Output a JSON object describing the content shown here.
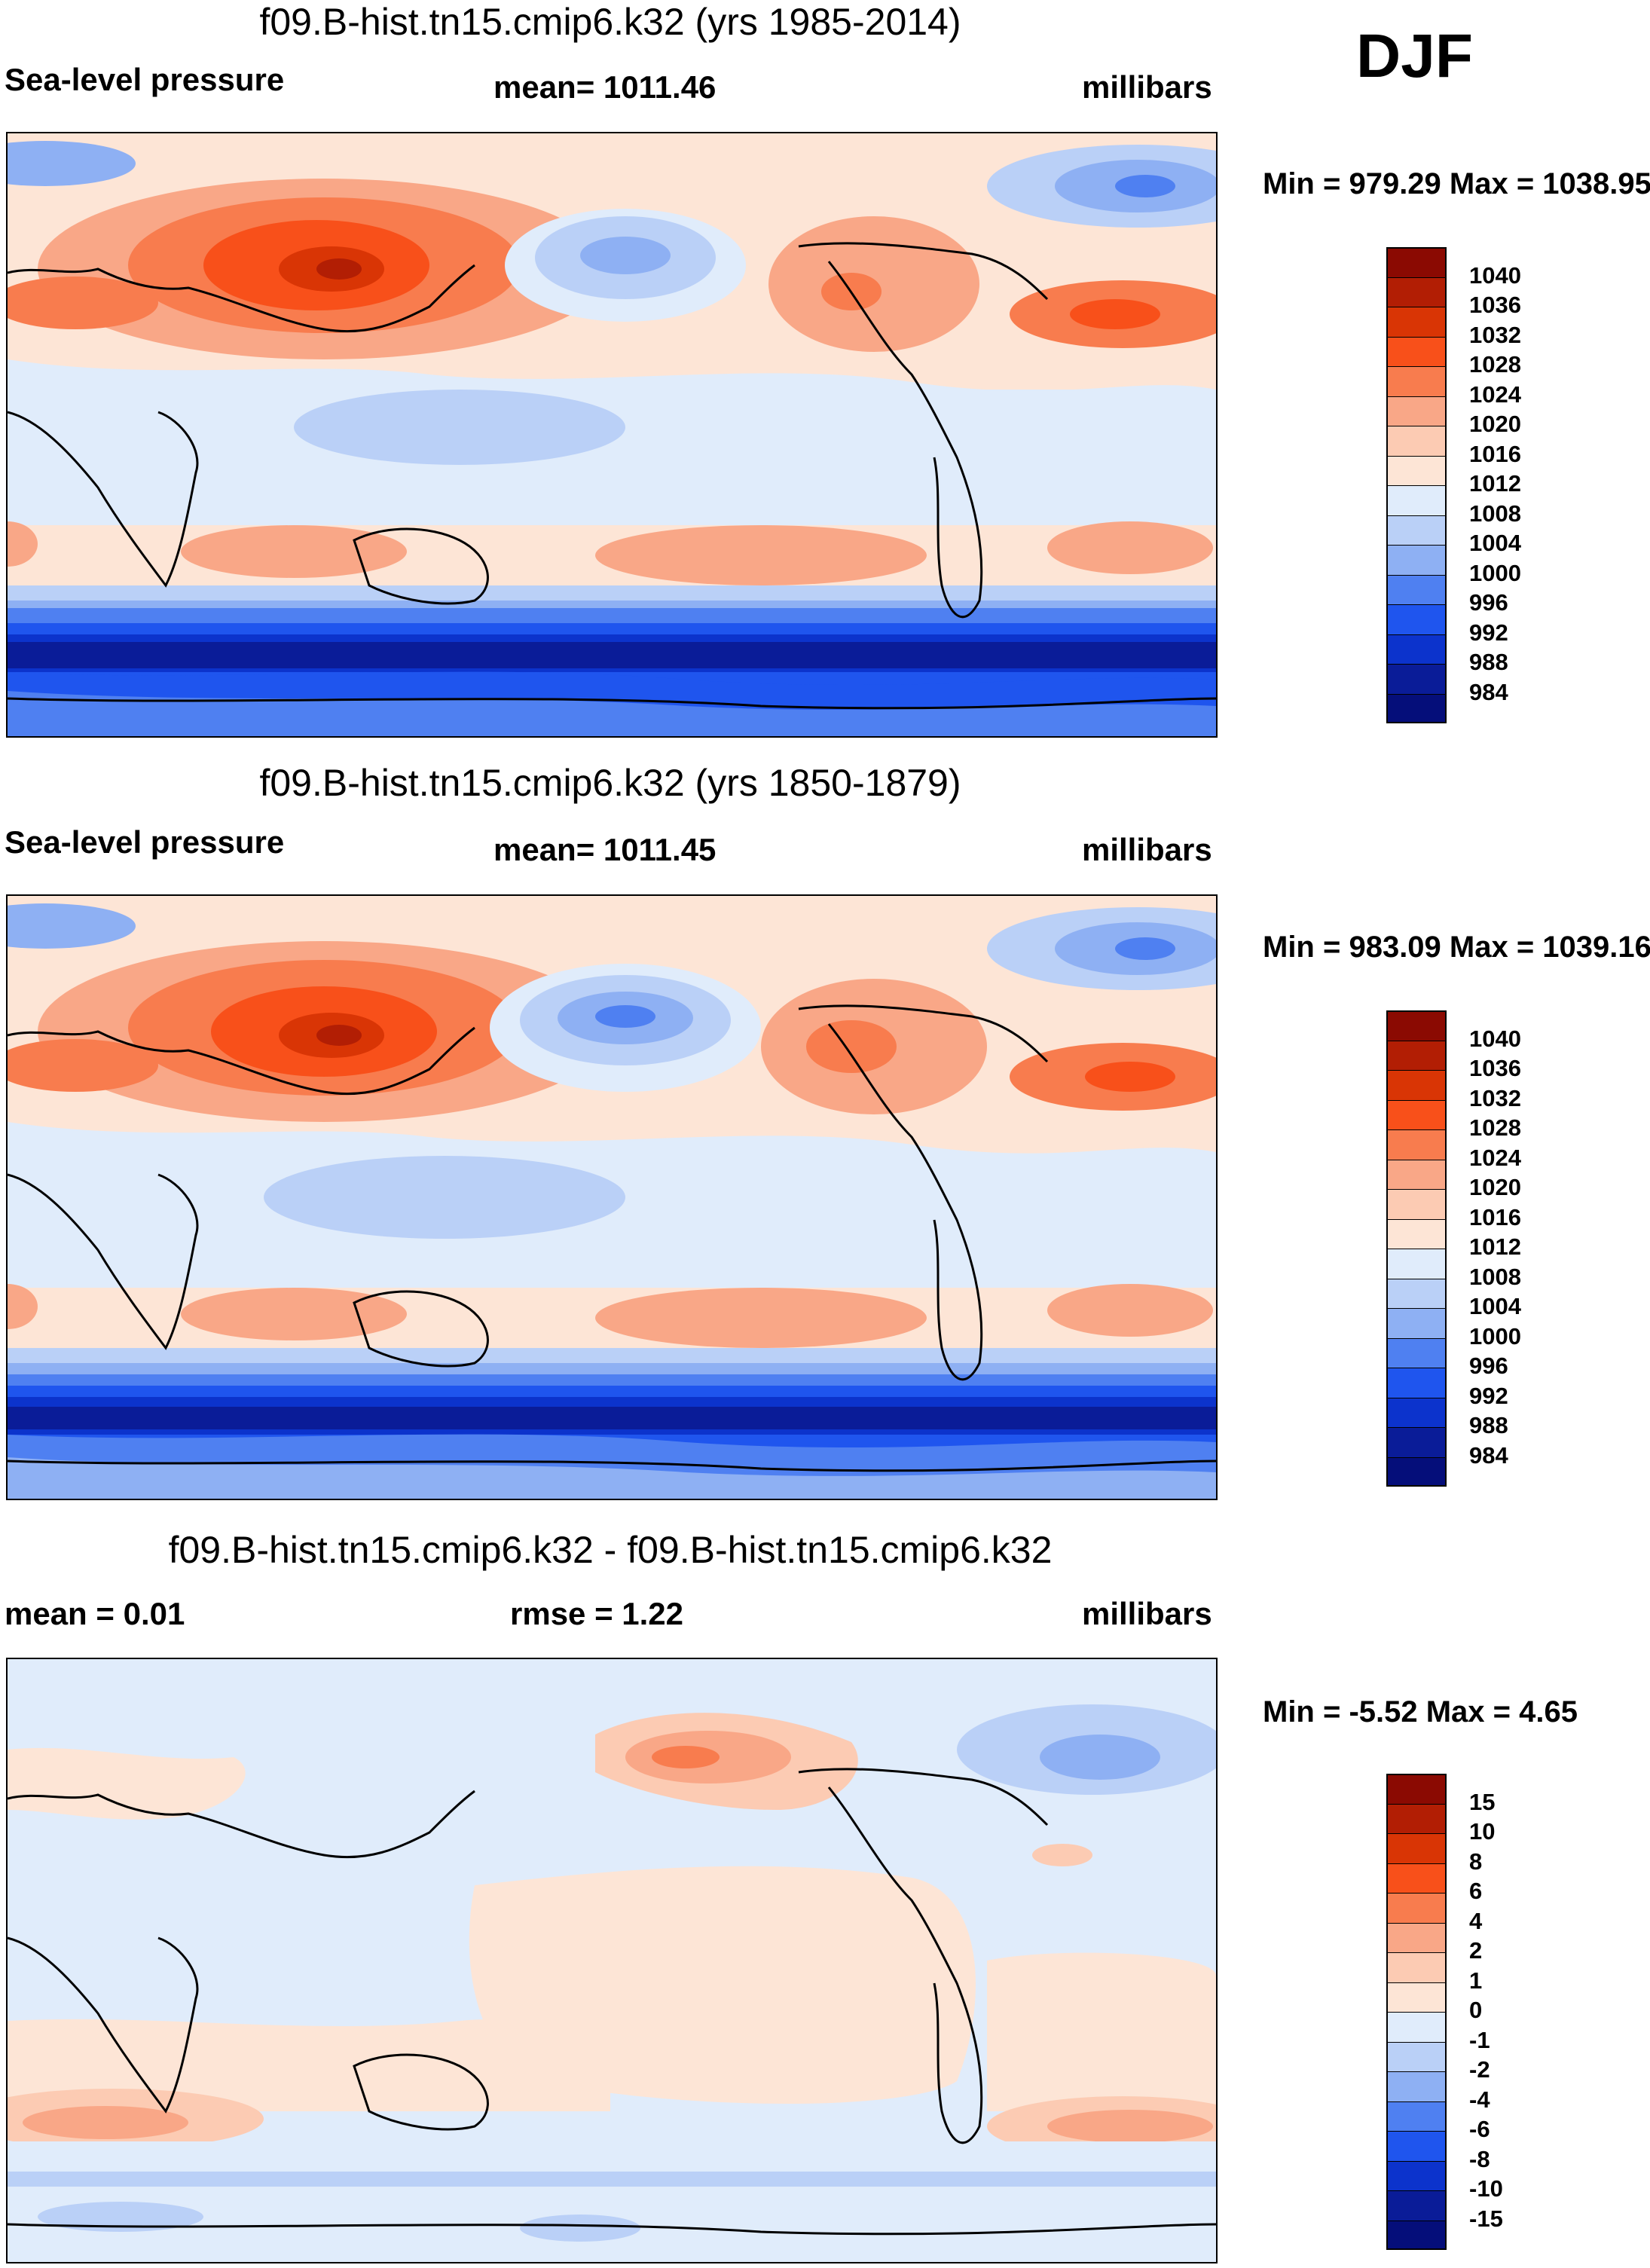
{
  "season": "DJF",
  "colorbar_levels_slp": [
    "1040",
    "1036",
    "1032",
    "1028",
    "1024",
    "1020",
    "1016",
    "1012",
    "1008",
    "1004",
    "1000",
    "996",
    "992",
    "988",
    "984"
  ],
  "colorbar_levels_diff": [
    "15",
    "10",
    "8",
    "6",
    "4",
    "2",
    "1",
    "0",
    "-1",
    "-2",
    "-4",
    "-6",
    "-8",
    "-10",
    "-15"
  ],
  "colors_slp": [
    "#8b0a02",
    "#b21e04",
    "#d93505",
    "#f8501a",
    "#f87c4e",
    "#f9a787",
    "#fccbb3",
    "#fde5d6",
    "#e0ecfb",
    "#bad0f7",
    "#8eb0f3",
    "#4f80f1",
    "#1f55ee",
    "#0c33cc",
    "#0a1c98",
    "#050e7a"
  ],
  "colors_diff": [
    "#8b0a02",
    "#b21e04",
    "#d93505",
    "#f8501a",
    "#f87c4e",
    "#f9a787",
    "#fccbb3",
    "#fde5d6",
    "#e0ecfb",
    "#bad0f7",
    "#8eb0f3",
    "#4f80f1",
    "#1f55ee",
    "#0c33cc",
    "#0a1c98",
    "#050e7a"
  ],
  "panels": [
    {
      "title": "f09.B-hist.tn15.cmip6.k32 (yrs 1985-2014)",
      "left": "Sea-level pressure",
      "center": "mean= 1011.46",
      "right": "millibars",
      "minmax": "Min = 979.29 Max = 1038.95"
    },
    {
      "title": "f09.B-hist.tn15.cmip6.k32 (yrs 1850-1879)",
      "left": "Sea-level pressure",
      "center": "mean= 1011.45",
      "right": "millibars",
      "minmax": "Min = 983.09 Max = 1039.16"
    },
    {
      "title": "f09.B-hist.tn15.cmip6.k32 - f09.B-hist.tn15.cmip6.k32",
      "left": "mean =   0.01",
      "center": "rmse =   1.22",
      "right": "millibars",
      "minmax": "Min =  -5.52 Max =   4.65"
    }
  ]
}
